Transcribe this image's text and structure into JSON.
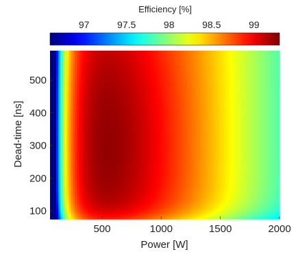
{
  "chart_data": {
    "type": "heatmap",
    "title": "",
    "xlabel": "Power [W]",
    "ylabel": "Dead-time [ns]",
    "xlim": [
      60,
      2000
    ],
    "ylim": [
      75,
      590
    ],
    "x_ticks": [
      500,
      1000,
      1500,
      2000
    ],
    "x_tick_labels": [
      "500",
      "1000",
      "1500",
      "2000"
    ],
    "y_ticks": [
      100,
      200,
      300,
      400,
      500
    ],
    "y_tick_labels": [
      "100",
      "200",
      "300",
      "400",
      "500"
    ],
    "grid": false,
    "colorbar": {
      "label": "Efficiency [%]",
      "position": "top",
      "colormap": "jet",
      "range": [
        96.6,
        99.3
      ],
      "ticks": [
        97,
        97.5,
        98,
        98.5,
        99
      ],
      "tick_labels": [
        "97",
        "97.5",
        "98",
        "98.5",
        "99"
      ]
    },
    "contour_style": "filled",
    "peak_efficiency": {
      "power": 550,
      "deadtime": 300,
      "value": 99.25
    }
  }
}
